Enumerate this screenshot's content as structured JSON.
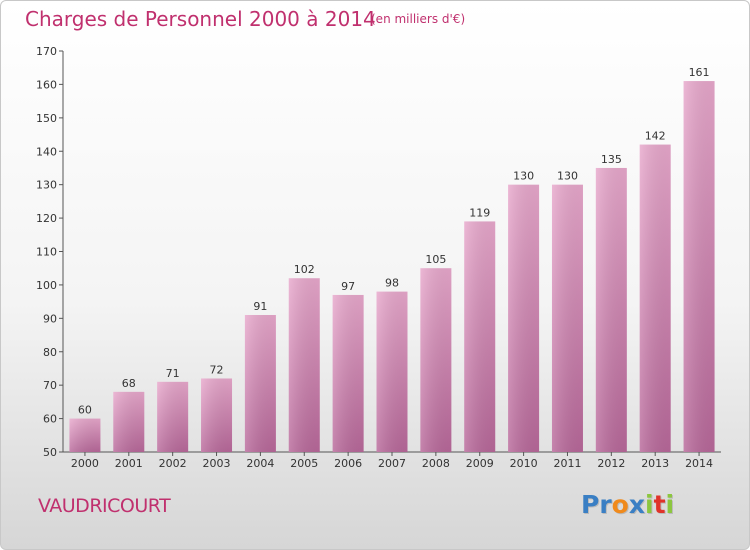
{
  "chart_data": {
    "type": "bar",
    "title": "Charges de Personnel 2000 à 2014",
    "subtitle": "(en milliers d'€)",
    "xlabel": "",
    "ylabel": "",
    "categories": [
      "2000",
      "2001",
      "2002",
      "2003",
      "2004",
      "2005",
      "2006",
      "2007",
      "2008",
      "2009",
      "2010",
      "2011",
      "2012",
      "2013",
      "2014"
    ],
    "values": [
      60,
      68,
      71,
      72,
      91,
      102,
      97,
      98,
      105,
      119,
      130,
      130,
      135,
      142,
      161
    ],
    "ylim": [
      50,
      170
    ],
    "yticks": [
      50,
      60,
      70,
      80,
      90,
      100,
      110,
      120,
      130,
      140,
      150,
      160,
      170
    ],
    "grid": false,
    "bar_color": "#d07aa8"
  },
  "footer": {
    "commune": "VAUDRICOURT",
    "logo_letters": [
      {
        "ch": "P",
        "color": "#3a7fc4"
      },
      {
        "ch": "r",
        "color": "#3a7fc4"
      },
      {
        "ch": "o",
        "color": "#f08a1c"
      },
      {
        "ch": "x",
        "color": "#3a7fc4"
      },
      {
        "ch": "i",
        "color": "#8cc63f"
      },
      {
        "ch": "t",
        "color": "#e0332a"
      },
      {
        "ch": "i",
        "color": "#8cc63f"
      }
    ]
  }
}
